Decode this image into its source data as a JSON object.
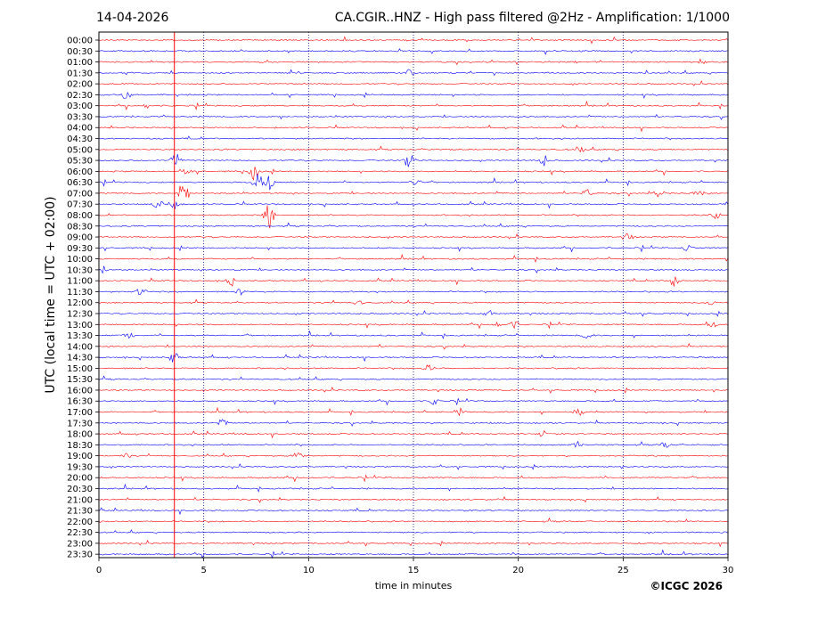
{
  "header": {
    "date": "14-04-2026",
    "title": "CA.CGIR..HNZ - High pass filtered @2Hz - Amplification: 1/1000"
  },
  "footer": {
    "copyright": "©ICGC 2026"
  },
  "chart_data": {
    "type": "line",
    "title": "CA.CGIR..HNZ - High pass filtered @2Hz - Amplification: 1/1000",
    "xlabel": "time in minutes",
    "ylabel": "UTC (local time = UTC + 02:00)",
    "xlim": [
      0,
      30
    ],
    "xticks": [
      0,
      5,
      10,
      15,
      20,
      25,
      30
    ],
    "vgrid_minutes": [
      5,
      10,
      15,
      20,
      25
    ],
    "rows": [
      "00:00",
      "00:30",
      "01:00",
      "01:30",
      "02:00",
      "02:30",
      "03:00",
      "03:30",
      "04:00",
      "04:30",
      "05:00",
      "05:30",
      "06:00",
      "06:30",
      "07:00",
      "07:30",
      "08:00",
      "08:30",
      "09:00",
      "09:30",
      "10:00",
      "10:30",
      "11:00",
      "11:30",
      "12:00",
      "12:30",
      "13:00",
      "13:30",
      "14:00",
      "14:30",
      "15:00",
      "15:30",
      "16:00",
      "16:30",
      "17:00",
      "17:30",
      "18:00",
      "18:30",
      "19:00",
      "19:30",
      "20:00",
      "20:30",
      "21:00",
      "21:30",
      "22:00",
      "22:30",
      "23:00",
      "23:30"
    ],
    "row_colors": [
      "#ff0000",
      "#0000ff"
    ],
    "events": [
      {
        "row": "01:00",
        "minute": 28.7,
        "amp": 0.2
      },
      {
        "row": "01:30",
        "minute": 14.8,
        "amp": 0.25
      },
      {
        "row": "02:30",
        "minute": 1.3,
        "amp": 0.4
      },
      {
        "row": "03:00",
        "minute": 2.3,
        "amp": 0.2
      },
      {
        "row": "05:00",
        "minute": 23.0,
        "amp": 0.2
      },
      {
        "row": "05:30",
        "minute": 3.7,
        "amp": 0.9
      },
      {
        "row": "05:30",
        "minute": 14.8,
        "amp": 0.8
      },
      {
        "row": "05:30",
        "minute": 21.2,
        "amp": 0.5
      },
      {
        "row": "06:00",
        "minute": 7.4,
        "amp": 0.7
      },
      {
        "row": "06:00",
        "minute": 4.2,
        "amp": 0.3
      },
      {
        "row": "06:30",
        "minute": 7.6,
        "amp": 0.8
      },
      {
        "row": "06:30",
        "minute": 8.1,
        "amp": 0.7
      },
      {
        "row": "06:30",
        "minute": 15.1,
        "amp": 0.4
      },
      {
        "row": "07:00",
        "minute": 4.0,
        "amp": 1.2
      },
      {
        "row": "07:00",
        "minute": 23.3,
        "amp": 0.3
      },
      {
        "row": "07:00",
        "minute": 26.7,
        "amp": 0.3
      },
      {
        "row": "07:00",
        "minute": 28.6,
        "amp": 0.3
      },
      {
        "row": "07:30",
        "minute": 2.8,
        "amp": 0.4
      },
      {
        "row": "07:30",
        "minute": 3.6,
        "amp": 0.5
      },
      {
        "row": "08:00",
        "minute": 8.1,
        "amp": 1.2
      },
      {
        "row": "08:00",
        "minute": 29.4,
        "amp": 0.3
      },
      {
        "row": "09:00",
        "minute": 25.2,
        "amp": 0.3
      },
      {
        "row": "09:30",
        "minute": 28.1,
        "amp": 0.3
      },
      {
        "row": "10:30",
        "minute": 0.2,
        "amp": 0.3
      },
      {
        "row": "11:00",
        "minute": 27.4,
        "amp": 0.5
      },
      {
        "row": "11:00",
        "minute": 6.3,
        "amp": 0.3
      },
      {
        "row": "11:30",
        "minute": 2.0,
        "amp": 0.3
      },
      {
        "row": "11:30",
        "minute": 6.8,
        "amp": 0.3
      },
      {
        "row": "12:00",
        "minute": 12.4,
        "amp": 0.3
      },
      {
        "row": "12:00",
        "minute": 29.2,
        "amp": 0.3
      },
      {
        "row": "12:30",
        "minute": 18.6,
        "amp": 0.3
      },
      {
        "row": "13:00",
        "minute": 18.9,
        "amp": 0.3
      },
      {
        "row": "13:00",
        "minute": 19.8,
        "amp": 0.3
      },
      {
        "row": "13:00",
        "minute": 29.2,
        "amp": 0.3
      },
      {
        "row": "13:30",
        "minute": 1.4,
        "amp": 0.3
      },
      {
        "row": "13:30",
        "minute": 23.3,
        "amp": 0.3
      },
      {
        "row": "14:30",
        "minute": 3.6,
        "amp": 0.5
      },
      {
        "row": "15:00",
        "minute": 15.7,
        "amp": 0.3
      },
      {
        "row": "16:30",
        "minute": 16.0,
        "amp": 0.3
      },
      {
        "row": "17:00",
        "minute": 17.2,
        "amp": 0.3
      },
      {
        "row": "17:00",
        "minute": 22.9,
        "amp": 0.3
      },
      {
        "row": "17:30",
        "minute": 5.9,
        "amp": 0.3
      },
      {
        "row": "18:00",
        "minute": 21.2,
        "amp": 0.3
      },
      {
        "row": "18:30",
        "minute": 22.8,
        "amp": 0.3
      },
      {
        "row": "18:30",
        "minute": 27.0,
        "amp": 0.3
      },
      {
        "row": "19:00",
        "minute": 9.5,
        "amp": 0.3
      },
      {
        "row": "19:00",
        "minute": 1.3,
        "amp": 0.2
      }
    ]
  }
}
